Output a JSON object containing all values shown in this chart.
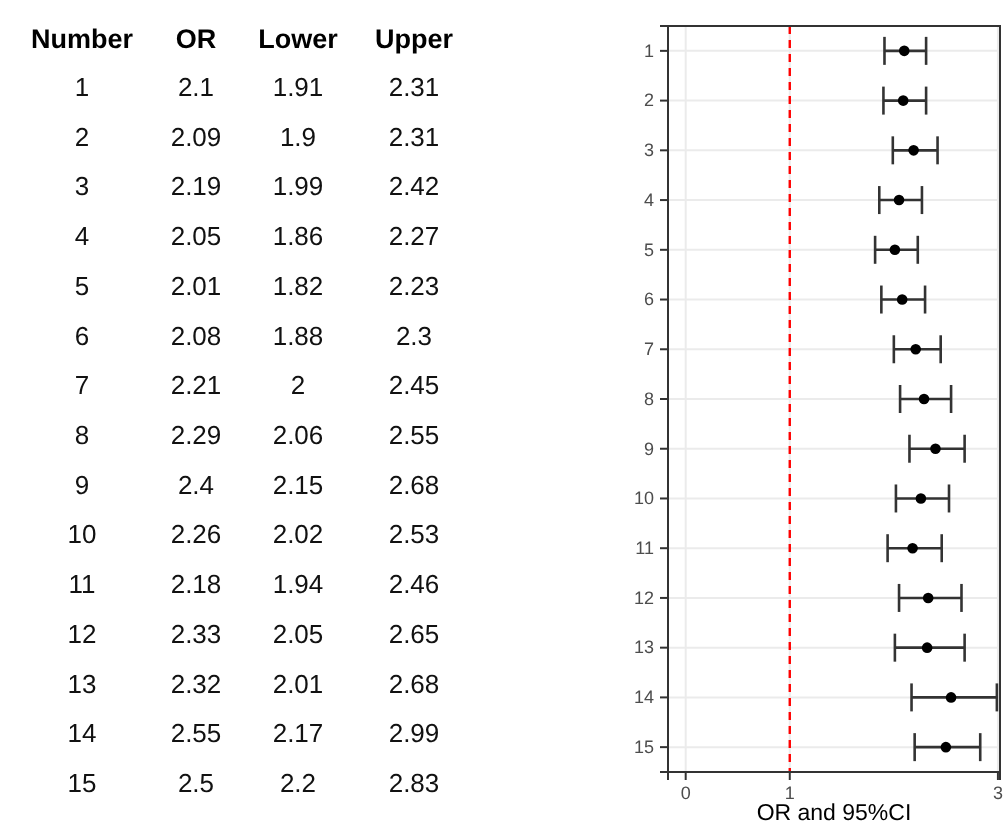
{
  "chart_data": {
    "type": "scatter",
    "orientation": "horizontal",
    "xlabel": "OR and 95%CI",
    "annotations": [
      "Number",
      "OR",
      "Lower",
      "Upper",
      "1.91",
      "1.9",
      "1.99",
      "1.86",
      "1.82",
      "1.88",
      "2",
      "2.06",
      "2.15",
      "2.02",
      "1.94",
      "2.05",
      "2.01",
      "2.17",
      "2.2",
      "2.31",
      "2.31",
      "2.42",
      "2.27",
      "2.23",
      "2.3",
      "2.45",
      "2.55",
      "2.68",
      "2.53",
      "2.46",
      "2.65",
      "2.68",
      "2.99",
      "2.83"
    ],
    "categories": [
      "1",
      "2",
      "3",
      "4",
      "5",
      "6",
      "7",
      "8",
      "9",
      "10",
      "11",
      "12",
      "13",
      "14",
      "15"
    ],
    "values": [
      2.1,
      2.09,
      2.19,
      2.05,
      2.01,
      2.08,
      2.21,
      2.29,
      2.4,
      2.26,
      2.18,
      2.33,
      2.32,
      2.55,
      2.5
    ],
    "errors": [
      [
        1.91,
        2.31
      ],
      [
        1.9,
        2.31
      ],
      [
        1.99,
        2.42
      ],
      [
        1.86,
        2.27
      ],
      [
        1.82,
        2.23
      ],
      [
        1.88,
        2.3
      ],
      [
        2,
        2.45
      ],
      [
        2.06,
        2.55
      ],
      [
        2.15,
        2.68
      ],
      [
        2.02,
        2.53
      ],
      [
        1.94,
        2.46
      ],
      [
        2.05,
        2.65
      ],
      [
        2.01,
        2.68
      ],
      [
        2.17,
        2.99
      ],
      [
        2.2,
        2.83
      ]
    ],
    "color": "#000000",
    "marker": "circle",
    "data_labels": true,
    "xlim": [
      -0.17,
      3.02
    ],
    "xticks": [
      0,
      1,
      3
    ],
    "grid": true,
    "ref_lines": [
      {
        "axis": "x",
        "value": 1,
        "color": "#ff0000",
        "line_style": "dashed"
      }
    ]
  }
}
